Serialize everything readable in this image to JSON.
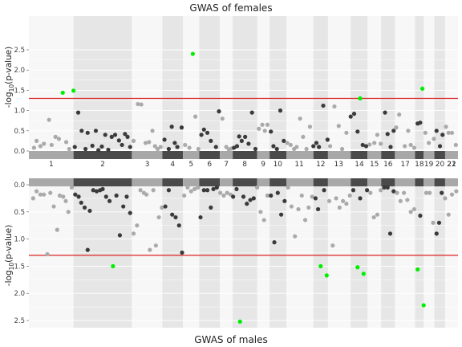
{
  "chart_data": [
    {
      "type": "scatter",
      "title": "GWAS of females",
      "xlabel": "",
      "ylabel_main": "-log",
      "ylabel_sub": "10",
      "ylabel_tail": "(p-value)",
      "ylim": [
        0,
        2.6
      ],
      "yticks": [
        "0.0",
        "0.5",
        "1.0",
        "1.5",
        "2.0",
        "2.5"
      ],
      "threshold": 1.3,
      "colors": {
        "significant": "#00ee00",
        "odd": "#aaaaaa",
        "even": "#3a3a3a",
        "threshold": "#dd2222"
      },
      "chromosomes": [
        "1",
        "2",
        "3",
        "4",
        "5",
        "6",
        "7",
        "8",
        "9",
        "10",
        "11",
        "12",
        "13",
        "14",
        "15",
        "16",
        "17",
        "18",
        "19",
        "20",
        "21",
        "22"
      ],
      "points": [
        {
          "x": 0.012,
          "y": 0.08
        },
        {
          "x": 0.018,
          "y": 0.25
        },
        {
          "x": 0.027,
          "y": 0.12
        },
        {
          "x": 0.035,
          "y": 0.18
        },
        {
          "x": 0.047,
          "y": 0.77
        },
        {
          "x": 0.053,
          "y": 0.15
        },
        {
          "x": 0.062,
          "y": 0.35
        },
        {
          "x": 0.07,
          "y": 0.3
        },
        {
          "x": 0.079,
          "y": 1.44
        },
        {
          "x": 0.087,
          "y": 0.22
        },
        {
          "x": 0.094,
          "y": 0.05
        },
        {
          "x": 0.104,
          "y": 1.49
        },
        {
          "x": 0.107,
          "y": 0.1
        },
        {
          "x": 0.115,
          "y": 0.95
        },
        {
          "x": 0.123,
          "y": 0.5
        },
        {
          "x": 0.132,
          "y": 0.05
        },
        {
          "x": 0.137,
          "y": 0.45
        },
        {
          "x": 0.148,
          "y": 0.13
        },
        {
          "x": 0.156,
          "y": 0.5
        },
        {
          "x": 0.162,
          "y": 0.02
        },
        {
          "x": 0.17,
          "y": 0.11
        },
        {
          "x": 0.178,
          "y": 0.4
        },
        {
          "x": 0.185,
          "y": 0.03
        },
        {
          "x": 0.193,
          "y": 0.35
        },
        {
          "x": 0.201,
          "y": 0.4
        },
        {
          "x": 0.21,
          "y": 0.26
        },
        {
          "x": 0.217,
          "y": 0.15
        },
        {
          "x": 0.224,
          "y": 0.42
        },
        {
          "x": 0.23,
          "y": 0.35
        },
        {
          "x": 0.236,
          "y": 0.1
        },
        {
          "x": 0.244,
          "y": 0.25
        },
        {
          "x": 0.254,
          "y": 1.16
        },
        {
          "x": 0.262,
          "y": 1.15
        },
        {
          "x": 0.272,
          "y": 0.2
        },
        {
          "x": 0.28,
          "y": 0.22
        },
        {
          "x": 0.288,
          "y": 0.5
        },
        {
          "x": 0.294,
          "y": 0.12
        },
        {
          "x": 0.3,
          "y": 0.05
        },
        {
          "x": 0.307,
          "y": 0.1
        },
        {
          "x": 0.316,
          "y": 0.28
        },
        {
          "x": 0.326,
          "y": 0.05
        },
        {
          "x": 0.333,
          "y": 0.6
        },
        {
          "x": 0.34,
          "y": 0.2
        },
        {
          "x": 0.346,
          "y": 0.1
        },
        {
          "x": 0.356,
          "y": 0.58
        },
        {
          "x": 0.364,
          "y": 0.15
        },
        {
          "x": 0.374,
          "y": 0.08
        },
        {
          "x": 0.382,
          "y": 2.4
        },
        {
          "x": 0.388,
          "y": 0.85
        },
        {
          "x": 0.395,
          "y": 0.05
        },
        {
          "x": 0.402,
          "y": 0.4
        },
        {
          "x": 0.408,
          "y": 0.53
        },
        {
          "x": 0.416,
          "y": 0.45
        },
        {
          "x": 0.424,
          "y": 0.25
        },
        {
          "x": 0.436,
          "y": 0.1
        },
        {
          "x": 0.443,
          "y": 0.98
        },
        {
          "x": 0.451,
          "y": 0.8
        },
        {
          "x": 0.46,
          "y": 0.1
        },
        {
          "x": 0.466,
          "y": 0.04
        },
        {
          "x": 0.472,
          "y": 0.06
        },
        {
          "x": 0.478,
          "y": 0.08
        },
        {
          "x": 0.485,
          "y": 0.12
        },
        {
          "x": 0.49,
          "y": 0.36
        },
        {
          "x": 0.496,
          "y": 0.25
        },
        {
          "x": 0.504,
          "y": 0.35
        },
        {
          "x": 0.512,
          "y": 0.18
        },
        {
          "x": 0.52,
          "y": 0.95
        },
        {
          "x": 0.528,
          "y": 0.05
        },
        {
          "x": 0.536,
          "y": 0.55
        },
        {
          "x": 0.544,
          "y": 0.65
        },
        {
          "x": 0.55,
          "y": 0.5
        },
        {
          "x": 0.556,
          "y": 0.65
        },
        {
          "x": 0.564,
          "y": 0.48
        },
        {
          "x": 0.57,
          "y": 0.12
        },
        {
          "x": 0.578,
          "y": 0.05
        },
        {
          "x": 0.586,
          "y": 1.0
        },
        {
          "x": 0.594,
          "y": 0.25
        },
        {
          "x": 0.602,
          "y": 0.2
        },
        {
          "x": 0.61,
          "y": 0.15
        },
        {
          "x": 0.618,
          "y": 0.05
        },
        {
          "x": 0.624,
          "y": 0.1
        },
        {
          "x": 0.632,
          "y": 0.8
        },
        {
          "x": 0.639,
          "y": 0.35
        },
        {
          "x": 0.647,
          "y": 0.05
        },
        {
          "x": 0.655,
          "y": 0.6
        },
        {
          "x": 0.663,
          "y": 0.12
        },
        {
          "x": 0.67,
          "y": 0.2
        },
        {
          "x": 0.676,
          "y": 0.1
        },
        {
          "x": 0.686,
          "y": 1.12
        },
        {
          "x": 0.696,
          "y": 0.28
        },
        {
          "x": 0.702,
          "y": 0.12
        },
        {
          "x": 0.712,
          "y": 1.1
        },
        {
          "x": 0.722,
          "y": 0.62
        },
        {
          "x": 0.73,
          "y": 0.05
        },
        {
          "x": 0.74,
          "y": 0.45
        },
        {
          "x": 0.75,
          "y": 0.85
        },
        {
          "x": 0.758,
          "y": 0.92
        },
        {
          "x": 0.766,
          "y": 0.48
        },
        {
          "x": 0.772,
          "y": 1.3
        },
        {
          "x": 0.778,
          "y": 0.15
        },
        {
          "x": 0.786,
          "y": 0.12
        },
        {
          "x": 0.794,
          "y": 0.16
        },
        {
          "x": 0.805,
          "y": 0.2
        },
        {
          "x": 0.812,
          "y": 0.4
        },
        {
          "x": 0.82,
          "y": 0.18
        },
        {
          "x": 0.83,
          "y": 0.95
        },
        {
          "x": 0.836,
          "y": 0.42
        },
        {
          "x": 0.843,
          "y": 0.1
        },
        {
          "x": 0.85,
          "y": 0.5
        },
        {
          "x": 0.856,
          "y": 0.58
        },
        {
          "x": 0.863,
          "y": 0.9
        },
        {
          "x": 0.876,
          "y": 0.12
        },
        {
          "x": 0.884,
          "y": 0.5
        },
        {
          "x": 0.89,
          "y": 0.15
        },
        {
          "x": 0.898,
          "y": 0.08
        },
        {
          "x": 0.906,
          "y": 0.68
        },
        {
          "x": 0.912,
          "y": 0.7
        },
        {
          "x": 0.917,
          "y": 1.54
        },
        {
          "x": 0.924,
          "y": 0.45
        },
        {
          "x": 0.932,
          "y": 0.2
        },
        {
          "x": 0.944,
          "y": 0.3
        },
        {
          "x": 0.95,
          "y": 0.5
        },
        {
          "x": 0.958,
          "y": 0.12
        },
        {
          "x": 0.964,
          "y": 0.4
        },
        {
          "x": 0.972,
          "y": 0.6
        },
        {
          "x": 0.978,
          "y": 0.45
        },
        {
          "x": 0.986,
          "y": 0.45
        },
        {
          "x": 0.995,
          "y": 0.15
        }
      ]
    },
    {
      "type": "scatter",
      "title": "GWAS of males",
      "xlabel": "",
      "ylabel_main": "-log",
      "ylabel_sub": "10",
      "ylabel_tail": "(p-value)",
      "ylim": [
        0,
        2.65
      ],
      "inverted": true,
      "yticks": [
        "0.0",
        "0.5",
        "1.0",
        "1.5",
        "2.0",
        "2.5"
      ],
      "threshold": 1.3,
      "points": [
        {
          "x": 0.01,
          "y": 0.25
        },
        {
          "x": 0.018,
          "y": 0.12
        },
        {
          "x": 0.027,
          "y": 0.18
        },
        {
          "x": 0.035,
          "y": 0.18
        },
        {
          "x": 0.043,
          "y": 1.28
        },
        {
          "x": 0.05,
          "y": 0.15
        },
        {
          "x": 0.058,
          "y": 0.4
        },
        {
          "x": 0.066,
          "y": 0.83
        },
        {
          "x": 0.072,
          "y": 0.2
        },
        {
          "x": 0.08,
          "y": 0.22
        },
        {
          "x": 0.086,
          "y": 0.3
        },
        {
          "x": 0.092,
          "y": 0.5
        },
        {
          "x": 0.1,
          "y": 0.05
        },
        {
          "x": 0.108,
          "y": 0.18
        },
        {
          "x": 0.116,
          "y": 0.22
        },
        {
          "x": 0.122,
          "y": 0.33
        },
        {
          "x": 0.13,
          "y": 0.42
        },
        {
          "x": 0.137,
          "y": 1.2
        },
        {
          "x": 0.142,
          "y": 0.48
        },
        {
          "x": 0.15,
          "y": 0.1
        },
        {
          "x": 0.158,
          "y": 0.12
        },
        {
          "x": 0.166,
          "y": 0.1
        },
        {
          "x": 0.172,
          "y": 0.08
        },
        {
          "x": 0.18,
          "y": 0.22
        },
        {
          "x": 0.188,
          "y": 0.3
        },
        {
          "x": 0.196,
          "y": 1.5
        },
        {
          "x": 0.204,
          "y": 0.2
        },
        {
          "x": 0.212,
          "y": 0.93
        },
        {
          "x": 0.22,
          "y": 0.4
        },
        {
          "x": 0.228,
          "y": 0.22
        },
        {
          "x": 0.236,
          "y": 0.52
        },
        {
          "x": 0.244,
          "y": 0.9
        },
        {
          "x": 0.252,
          "y": 0.75
        },
        {
          "x": 0.26,
          "y": 0.1
        },
        {
          "x": 0.268,
          "y": 0.15
        },
        {
          "x": 0.274,
          "y": 0.18
        },
        {
          "x": 0.282,
          "y": 1.2
        },
        {
          "x": 0.29,
          "y": 0.1
        },
        {
          "x": 0.296,
          "y": 1.12
        },
        {
          "x": 0.303,
          "y": 0.6
        },
        {
          "x": 0.31,
          "y": 0.42
        },
        {
          "x": 0.318,
          "y": 0.4
        },
        {
          "x": 0.326,
          "y": 0.1
        },
        {
          "x": 0.334,
          "y": 0.55
        },
        {
          "x": 0.342,
          "y": 0.6
        },
        {
          "x": 0.35,
          "y": 0.75
        },
        {
          "x": 0.357,
          "y": 1.25
        },
        {
          "x": 0.362,
          "y": 0.2
        },
        {
          "x": 0.37,
          "y": 0.05
        },
        {
          "x": 0.378,
          "y": 0.12
        },
        {
          "x": 0.386,
          "y": 0.08
        },
        {
          "x": 0.394,
          "y": 0.05
        },
        {
          "x": 0.4,
          "y": 0.6
        },
        {
          "x": 0.408,
          "y": 0.1
        },
        {
          "x": 0.416,
          "y": 0.1
        },
        {
          "x": 0.424,
          "y": 0.42
        },
        {
          "x": 0.43,
          "y": 0.08
        },
        {
          "x": 0.438,
          "y": 0.05
        },
        {
          "x": 0.446,
          "y": 0.15
        },
        {
          "x": 0.454,
          "y": 0.2
        },
        {
          "x": 0.462,
          "y": 0.15
        },
        {
          "x": 0.47,
          "y": 0.18
        },
        {
          "x": 0.476,
          "y": 0.22
        },
        {
          "x": 0.484,
          "y": 0.08
        },
        {
          "x": 0.492,
          "y": 2.52
        },
        {
          "x": 0.5,
          "y": 0.22
        },
        {
          "x": 0.508,
          "y": 0.35
        },
        {
          "x": 0.516,
          "y": 0.28
        },
        {
          "x": 0.524,
          "y": 0.25
        },
        {
          "x": 0.532,
          "y": 0.05
        },
        {
          "x": 0.54,
          "y": 0.5
        },
        {
          "x": 0.548,
          "y": 0.65
        },
        {
          "x": 0.556,
          "y": 0.2
        },
        {
          "x": 0.564,
          "y": 0.2
        },
        {
          "x": 0.572,
          "y": 1.06
        },
        {
          "x": 0.58,
          "y": 0.15
        },
        {
          "x": 0.588,
          "y": 0.55
        },
        {
          "x": 0.596,
          "y": 0.3
        },
        {
          "x": 0.604,
          "y": 0.05
        },
        {
          "x": 0.612,
          "y": 0.4
        },
        {
          "x": 0.62,
          "y": 0.95
        },
        {
          "x": 0.628,
          "y": 0.45
        },
        {
          "x": 0.636,
          "y": 0.2
        },
        {
          "x": 0.644,
          "y": 0.65
        },
        {
          "x": 0.652,
          "y": 0.42
        },
        {
          "x": 0.66,
          "y": 0.22
        },
        {
          "x": 0.668,
          "y": 0.25
        },
        {
          "x": 0.674,
          "y": 0.45
        },
        {
          "x": 0.68,
          "y": 1.5
        },
        {
          "x": 0.688,
          "y": 0.1
        },
        {
          "x": 0.694,
          "y": 1.67
        },
        {
          "x": 0.7,
          "y": 0.3
        },
        {
          "x": 0.708,
          "y": 1.12
        },
        {
          "x": 0.716,
          "y": 0.25
        },
        {
          "x": 0.724,
          "y": 0.42
        },
        {
          "x": 0.732,
          "y": 0.3
        },
        {
          "x": 0.74,
          "y": 0.35
        },
        {
          "x": 0.748,
          "y": 0.2
        },
        {
          "x": 0.756,
          "y": 0.1
        },
        {
          "x": 0.766,
          "y": 1.52
        },
        {
          "x": 0.772,
          "y": 0.25
        },
        {
          "x": 0.78,
          "y": 1.64
        },
        {
          "x": 0.788,
          "y": 0.1
        },
        {
          "x": 0.796,
          "y": 0.15
        },
        {
          "x": 0.804,
          "y": 0.6
        },
        {
          "x": 0.812,
          "y": 0.55
        },
        {
          "x": 0.82,
          "y": 0.1
        },
        {
          "x": 0.828,
          "y": 0.05
        },
        {
          "x": 0.836,
          "y": 0.05
        },
        {
          "x": 0.842,
          "y": 0.9
        },
        {
          "x": 0.85,
          "y": 0.12
        },
        {
          "x": 0.858,
          "y": 0.15
        },
        {
          "x": 0.866,
          "y": 0.3
        },
        {
          "x": 0.874,
          "y": 0.15
        },
        {
          "x": 0.882,
          "y": 0.28
        },
        {
          "x": 0.89,
          "y": 0.5
        },
        {
          "x": 0.898,
          "y": 0.45
        },
        {
          "x": 0.906,
          "y": 1.56
        },
        {
          "x": 0.912,
          "y": 0.57
        },
        {
          "x": 0.92,
          "y": 2.22
        },
        {
          "x": 0.926,
          "y": 0.15
        },
        {
          "x": 0.934,
          "y": 0.15
        },
        {
          "x": 0.942,
          "y": 0.7
        },
        {
          "x": 0.95,
          "y": 0.9
        },
        {
          "x": 0.956,
          "y": 0.7
        },
        {
          "x": 0.962,
          "y": 0.15
        },
        {
          "x": 0.97,
          "y": 0.25
        },
        {
          "x": 0.978,
          "y": 0.55
        },
        {
          "x": 0.986,
          "y": 0.18
        },
        {
          "x": 0.996,
          "y": 0.12
        }
      ]
    }
  ]
}
